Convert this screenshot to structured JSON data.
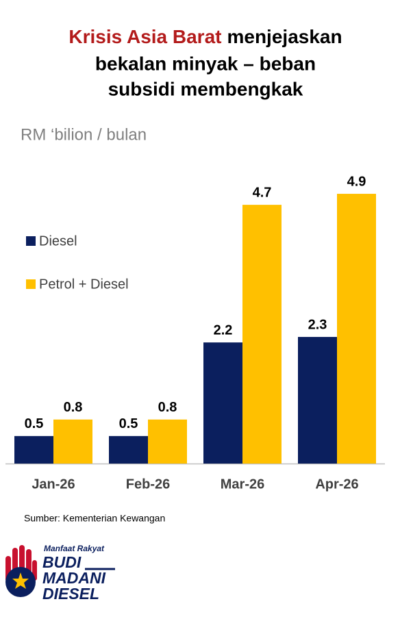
{
  "chart_data": {
    "type": "bar",
    "title": {
      "highlight": "Krisis Asia Barat",
      "lines": [
        "menjejaskan",
        "bekalan minyak – beban",
        "subsidi membengkak"
      ]
    },
    "subtitle": "RM ‘bilion / bulan",
    "categories": [
      "Jan-26",
      "Feb-26",
      "Mar-26",
      "Apr-26"
    ],
    "series": [
      {
        "name": "Diesel",
        "color": "#0b1f5e",
        "values": [
          0.5,
          0.5,
          2.2,
          2.3
        ]
      },
      {
        "name": "Petrol + Diesel",
        "color": "#ffc000",
        "values": [
          0.8,
          0.8,
          4.7,
          4.9
        ]
      }
    ],
    "ylim": [
      0,
      5
    ],
    "grid": false,
    "legend": "center-left",
    "source": "Sumber: Kementerian Kewangan"
  },
  "logo": {
    "tagline": "Manfaat Rakyat",
    "lines": [
      "BUDI",
      "MADANI",
      "DIESEL"
    ]
  }
}
